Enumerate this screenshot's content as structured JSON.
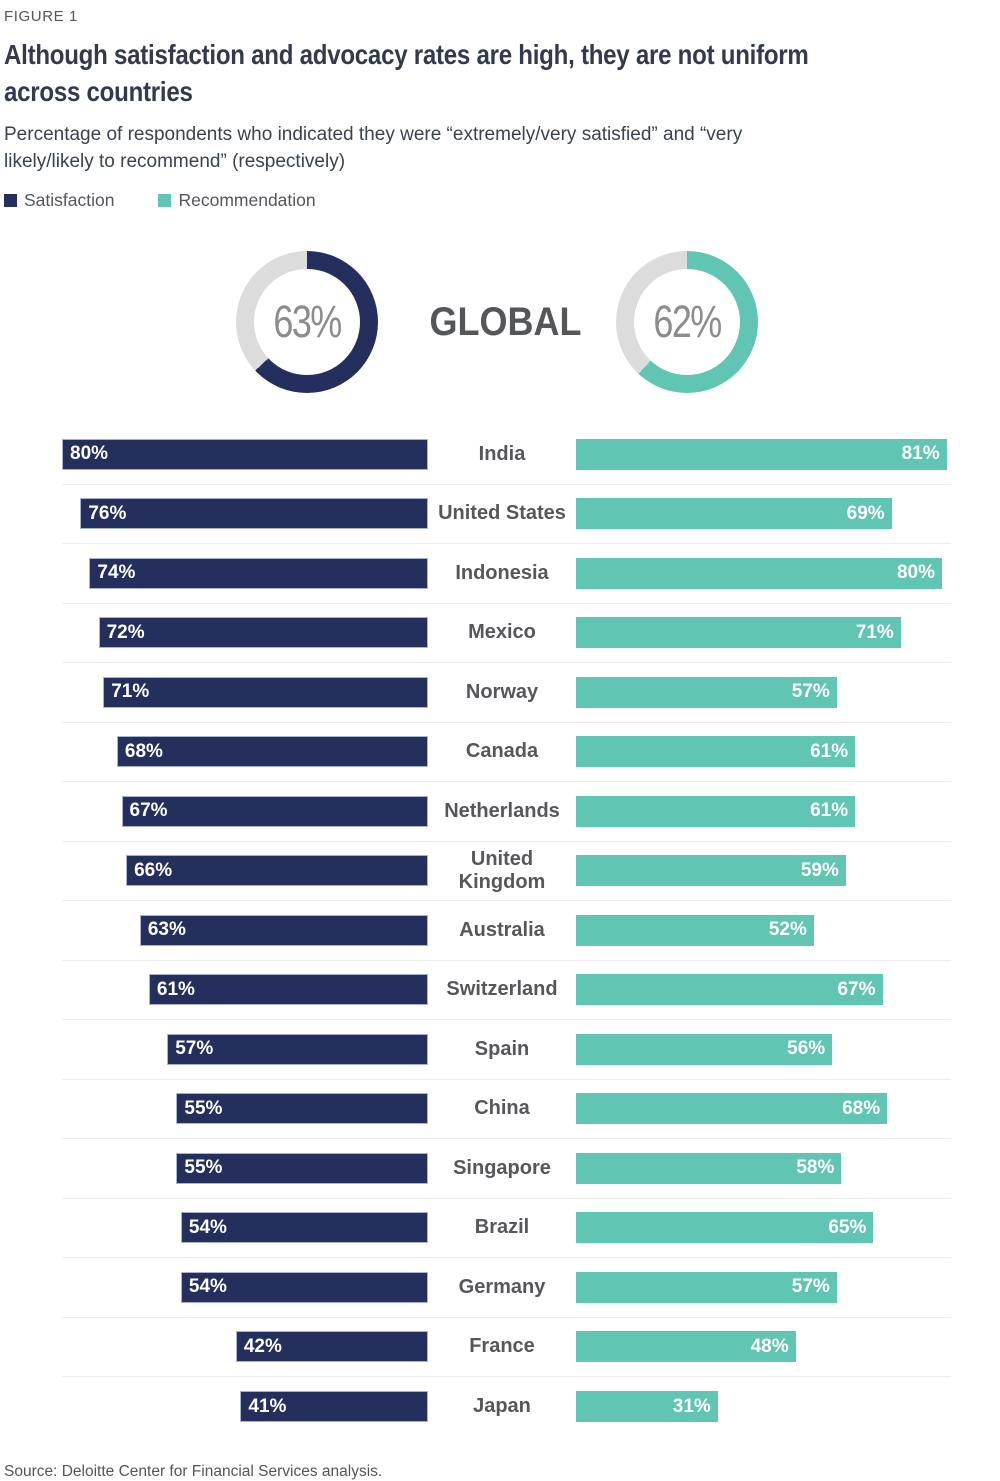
{
  "figure_label": "FIGURE 1",
  "title": "Although satisfaction and advocacy rates are high, they are not uniform across countries",
  "subtitle": "Percentage of respondents who indicated they were “extremely/very satisfied” and “very likely/likely to recommend” (respectively)",
  "source": "Source: Deloitte Center for Financial Services analysis.",
  "colors": {
    "satisfaction": "#252f5e",
    "satisfaction_border": "#a9b3cf",
    "recommendation": "#60c5b2",
    "donut_track": "#dcdcdc",
    "separator": "#ededed",
    "value_text": "#ffffff",
    "country_text": "#55575b",
    "donut_number_text": "#8c8c8c"
  },
  "chart_data": {
    "type": "bar",
    "subtype": "butterfly",
    "title": "Although satisfaction and advocacy rates are high, they are not uniform across countries",
    "categories": [
      "India",
      "United States",
      "Indonesia",
      "Mexico",
      "Norway",
      "Canada",
      "Netherlands",
      "United Kingdom",
      "Australia",
      "Switzerland",
      "Spain",
      "China",
      "Singapore",
      "Brazil",
      "Germany",
      "France",
      "Japan"
    ],
    "series": [
      {
        "name": "Satisfaction",
        "color": "#252f5e",
        "values": [
          80,
          76,
          74,
          72,
          71,
          68,
          67,
          66,
          63,
          61,
          57,
          55,
          55,
          54,
          54,
          42,
          41
        ]
      },
      {
        "name": "Recommendation",
        "color": "#60c5b2",
        "values": [
          81,
          69,
          80,
          71,
          57,
          61,
          61,
          59,
          52,
          67,
          56,
          68,
          58,
          65,
          57,
          48,
          31
        ]
      }
    ],
    "global": {
      "label": "GLOBAL",
      "satisfaction": 63,
      "recommendation": 62
    },
    "value_suffix": "%",
    "axis_max": 100,
    "grid": false,
    "legend_position": "top-left",
    "value_labels": "inside-bars"
  }
}
